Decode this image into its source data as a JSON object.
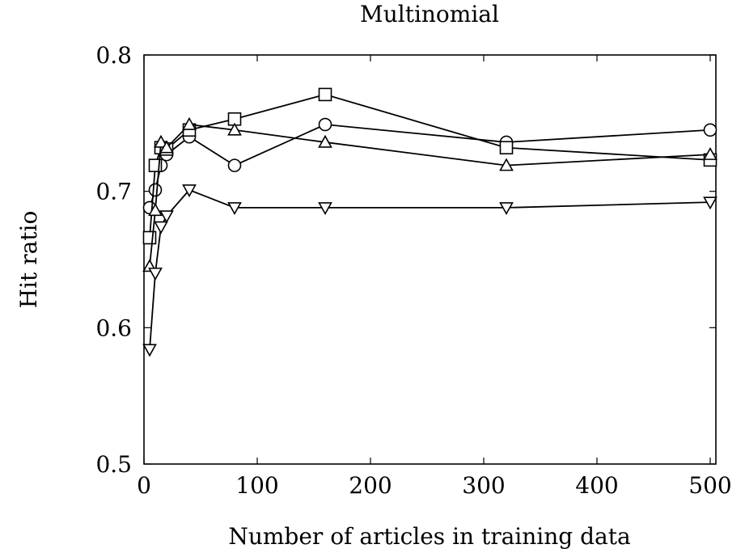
{
  "chart_data": {
    "type": "line",
    "title": "Multinomial",
    "xlabel": "Number of articles in training data",
    "ylabel": "Hit ratio",
    "xlim": [
      0,
      505
    ],
    "ylim": [
      0.5,
      0.8
    ],
    "xticks": [
      0,
      100,
      200,
      300,
      400,
      500
    ],
    "yticks": [
      0.5,
      0.6,
      0.7,
      0.8
    ],
    "xtick_labels": [
      "0",
      "100",
      "200",
      "300",
      "400",
      "500"
    ],
    "ytick_labels": [
      "0.5",
      "0.6",
      "0.7",
      "0.8"
    ],
    "grid": false,
    "series": [
      {
        "marker": "circle",
        "x": [
          5,
          10,
          15,
          20,
          40,
          80,
          160,
          320,
          500
        ],
        "y": [
          0.688,
          0.701,
          0.719,
          0.727,
          0.74,
          0.719,
          0.749,
          0.736,
          0.745
        ]
      },
      {
        "marker": "square",
        "x": [
          5,
          10,
          15,
          20,
          40,
          80,
          160,
          320,
          500
        ],
        "y": [
          0.666,
          0.719,
          0.732,
          0.731,
          0.745,
          0.753,
          0.771,
          0.732,
          0.723
        ]
      },
      {
        "marker": "triangle-up",
        "x": [
          5,
          10,
          15,
          20,
          40,
          80,
          160,
          320,
          500
        ],
        "y": [
          0.645,
          0.686,
          0.736,
          0.732,
          0.749,
          0.745,
          0.736,
          0.719,
          0.727
        ]
      },
      {
        "marker": "triangle-down",
        "x": [
          5,
          10,
          15,
          20,
          40,
          80,
          160,
          320,
          500
        ],
        "y": [
          0.584,
          0.64,
          0.674,
          0.682,
          0.701,
          0.688,
          0.688,
          0.688,
          0.692
        ]
      }
    ]
  }
}
